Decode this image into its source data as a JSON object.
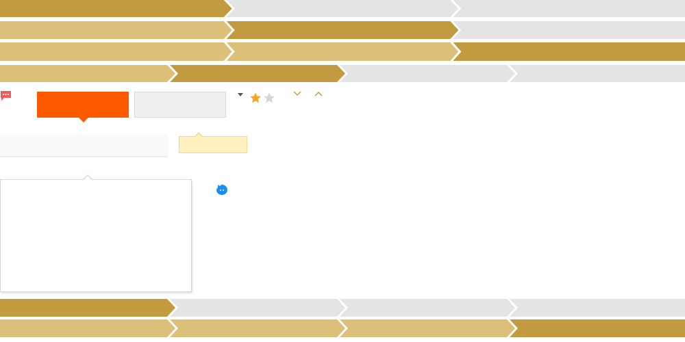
{
  "colors": {
    "step_active": "#c29a3f",
    "step_done": "#dcbf78",
    "step_todo": "#e4e4e4",
    "orange": "#ff5a00",
    "yellow": "#fff1bf",
    "blue": "#1a8ff0",
    "star_filled": "#f5a623",
    "star_empty": "#d6d6d6"
  },
  "step_rows": [
    {
      "steps": [
        "active",
        "todo",
        "todo"
      ]
    },
    {
      "steps": [
        "done",
        "active",
        "todo"
      ]
    },
    {
      "steps": [
        "done",
        "done",
        "active"
      ]
    },
    {
      "steps": [
        "done",
        "active",
        "todo",
        "todo"
      ]
    },
    {
      "steps": [
        "active",
        "todo",
        "todo",
        "todo"
      ]
    },
    {
      "steps": [
        "done",
        "done",
        "done",
        "active"
      ]
    }
  ],
  "rating": {
    "value": 1,
    "max": 2
  },
  "icons": {
    "message": "chat-bubble-icon",
    "caret": "caret-down-icon",
    "chevron_down": "chevron-down-icon",
    "chevron_up": "chevron-up-icon",
    "bubble": "blue-chat-icon"
  }
}
